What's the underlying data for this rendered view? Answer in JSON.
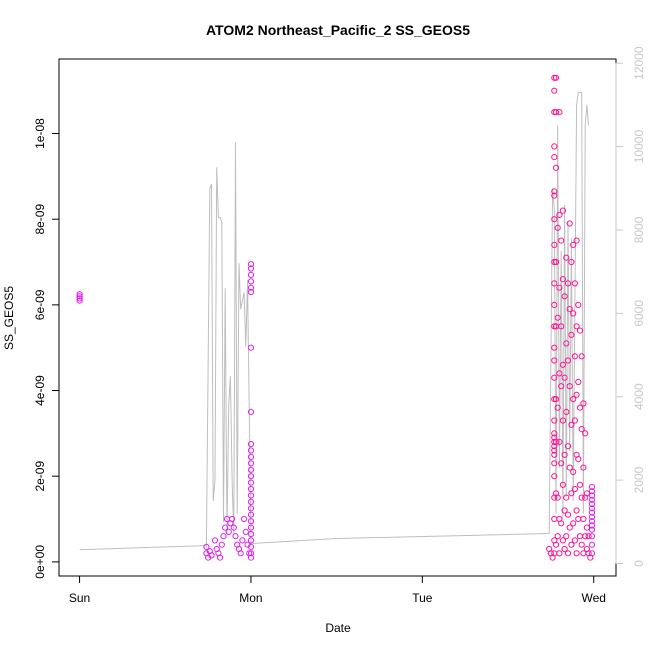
{
  "chart_data": {
    "type": "scatter",
    "title": "ATOM2 Northeast_Pacific_2 SS_GEOS5",
    "xlabel": "Date",
    "ylabel": "SS_GEOS5",
    "x_ticks": [
      "Sun",
      "Mon",
      "Tue",
      "Wed"
    ],
    "x_tick_values": [
      0,
      1,
      2,
      3
    ],
    "xlim": [
      -0.12,
      3.13
    ],
    "ylim": [
      -3.3e-10,
      1.174e-08
    ],
    "y_ticks": [
      0,
      2e-09,
      4e-09,
      6e-09,
      8e-09,
      1e-08
    ],
    "y_tick_labels": [
      "0e+00",
      "2e-09",
      "4e-09",
      "6e-09",
      "8e-09",
      "1e-08"
    ],
    "y2lim": [
      -300,
      12100
    ],
    "y2_ticks": [
      0,
      2000,
      4000,
      6000,
      8000,
      10000,
      12000
    ],
    "y2_tick_labels": [
      "0",
      "2000",
      "4000",
      "6000",
      "8000",
      "10000",
      "12000"
    ],
    "colors": {
      "magenta": "#dd22ee",
      "pink": "#ff1493",
      "line": "#bebebe",
      "right_axis": "#c8c8c8"
    },
    "series": [
      {
        "color": "magenta",
        "points": [
          [
            0.0,
            6.25e-09
          ],
          [
            0.0,
            6.2e-09
          ],
          [
            0.0,
            6.15e-09
          ],
          [
            0.0,
            6.1e-09
          ],
          [
            0.74,
            3.5e-10
          ],
          [
            0.74,
            2e-10
          ],
          [
            0.75,
            1e-10
          ],
          [
            0.76,
            2.5e-10
          ],
          [
            0.77,
            1.5e-10
          ],
          [
            0.79,
            5e-10
          ],
          [
            0.8,
            3e-10
          ],
          [
            0.81,
            2e-10
          ],
          [
            0.82,
            1e-10
          ],
          [
            0.83,
            4e-10
          ],
          [
            0.84,
            6e-10
          ],
          [
            0.85,
            8e-10
          ],
          [
            0.86,
            1e-09
          ],
          [
            0.87,
            7e-10
          ],
          [
            0.88,
            9e-10
          ],
          [
            0.89,
            1e-09
          ],
          [
            0.9,
            8e-10
          ],
          [
            0.91,
            6e-10
          ],
          [
            0.92,
            4e-10
          ],
          [
            0.93,
            3e-10
          ],
          [
            0.94,
            2e-10
          ],
          [
            0.95,
            5e-10
          ],
          [
            0.96,
            1e-09
          ],
          [
            0.97,
            7e-10
          ],
          [
            0.98,
            4e-10
          ],
          [
            0.99,
            2e-10
          ],
          [
            1.0,
            6.95e-09
          ],
          [
            1.0,
            6.85e-09
          ],
          [
            1.0,
            6.7e-09
          ],
          [
            1.0,
            6.55e-09
          ],
          [
            1.0,
            6.4e-09
          ],
          [
            1.0,
            6.3e-09
          ],
          [
            1.0,
            5e-09
          ],
          [
            1.0,
            3.5e-09
          ],
          [
            1.0,
            2.75e-09
          ],
          [
            1.0,
            2.6e-09
          ],
          [
            1.0,
            2.45e-09
          ],
          [
            1.0,
            2.3e-09
          ],
          [
            1.0,
            2.15e-09
          ],
          [
            1.0,
            2e-09
          ],
          [
            1.0,
            1.85e-09
          ],
          [
            1.0,
            1.7e-09
          ],
          [
            1.0,
            1.55e-09
          ],
          [
            1.0,
            1.4e-09
          ],
          [
            1.0,
            1.25e-09
          ],
          [
            1.0,
            1.1e-09
          ],
          [
            1.0,
            9.5e-10
          ],
          [
            1.0,
            8e-10
          ],
          [
            1.0,
            6.5e-10
          ],
          [
            1.0,
            5e-10
          ],
          [
            1.0,
            3.5e-10
          ],
          [
            1.0,
            2e-10
          ],
          [
            1.0,
            1e-10
          ],
          [
            2.99,
            1.75e-09
          ],
          [
            2.99,
            1.65e-09
          ],
          [
            2.99,
            1.55e-09
          ],
          [
            2.99,
            1.45e-09
          ],
          [
            2.99,
            1.35e-09
          ],
          [
            2.99,
            1.25e-09
          ],
          [
            2.99,
            1.15e-09
          ],
          [
            2.99,
            1.05e-09
          ],
          [
            2.99,
            9.5e-10
          ],
          [
            2.99,
            8.5e-10
          ],
          [
            2.99,
            7.5e-10
          ],
          [
            2.99,
            6e-10
          ],
          [
            2.99,
            4e-10
          ],
          [
            2.99,
            2e-10
          ]
        ]
      },
      {
        "color": "pink",
        "points": [
          [
            2.74,
            3e-10
          ],
          [
            2.75,
            2e-10
          ],
          [
            2.76,
            1e-10
          ],
          [
            2.77,
            1.13e-08
          ],
          [
            2.77,
            1.1e-08
          ],
          [
            2.77,
            1.05e-08
          ],
          [
            2.77,
            9.7e-09
          ],
          [
            2.77,
            9.45e-09
          ],
          [
            2.77,
            8.65e-09
          ],
          [
            2.77,
            8.55e-09
          ],
          [
            2.77,
            8e-09
          ],
          [
            2.77,
            7.4e-09
          ],
          [
            2.77,
            7e-09
          ],
          [
            2.77,
            6.5e-09
          ],
          [
            2.77,
            6e-09
          ],
          [
            2.77,
            5.5e-09
          ],
          [
            2.77,
            5e-09
          ],
          [
            2.77,
            4.7e-09
          ],
          [
            2.77,
            4.3e-09
          ],
          [
            2.77,
            3.8e-09
          ],
          [
            2.77,
            3.3e-09
          ],
          [
            2.77,
            3e-09
          ],
          [
            2.77,
            2.9e-09
          ],
          [
            2.77,
            2.8e-09
          ],
          [
            2.77,
            2.7e-09
          ],
          [
            2.77,
            2.6e-09
          ],
          [
            2.77,
            2.5e-09
          ],
          [
            2.77,
            2.3e-09
          ],
          [
            2.77,
            2e-09
          ],
          [
            2.77,
            1.5e-09
          ],
          [
            2.77,
            1e-09
          ],
          [
            2.77,
            5e-10
          ],
          [
            2.77,
            2e-10
          ],
          [
            2.78,
            1.13e-08
          ],
          [
            2.78,
            1.05e-08
          ],
          [
            2.78,
            9.2e-09
          ],
          [
            2.78,
            7e-09
          ],
          [
            2.78,
            5.5e-09
          ],
          [
            2.78,
            3.8e-09
          ],
          [
            2.78,
            2.8e-09
          ],
          [
            2.78,
            1.6e-09
          ],
          [
            2.78,
            4e-10
          ],
          [
            2.79,
            7.8e-09
          ],
          [
            2.79,
            5.7e-09
          ],
          [
            2.79,
            3.6e-09
          ],
          [
            2.79,
            1.5e-09
          ],
          [
            2.79,
            6e-10
          ],
          [
            2.8,
            1.05e-08
          ],
          [
            2.8,
            8.1e-09
          ],
          [
            2.8,
            6.4e-09
          ],
          [
            2.8,
            4.4e-09
          ],
          [
            2.8,
            2.8e-09
          ],
          [
            2.8,
            1e-09
          ],
          [
            2.8,
            2e-10
          ],
          [
            2.81,
            7.5e-09
          ],
          [
            2.81,
            5.5e-09
          ],
          [
            2.81,
            4.1e-09
          ],
          [
            2.81,
            2.3e-09
          ],
          [
            2.81,
            9e-10
          ],
          [
            2.82,
            8.2e-09
          ],
          [
            2.82,
            6.6e-09
          ],
          [
            2.82,
            4.6e-09
          ],
          [
            2.82,
            3.3e-09
          ],
          [
            2.82,
            1.8e-09
          ],
          [
            2.82,
            5e-10
          ],
          [
            2.83,
            6.2e-09
          ],
          [
            2.83,
            4.3e-09
          ],
          [
            2.83,
            2.5e-09
          ],
          [
            2.83,
            1.2e-09
          ],
          [
            2.83,
            3e-10
          ],
          [
            2.84,
            7.1e-09
          ],
          [
            2.84,
            5.1e-09
          ],
          [
            2.84,
            3.5e-09
          ],
          [
            2.84,
            1.5e-09
          ],
          [
            2.84,
            6e-10
          ],
          [
            2.85,
            6.5e-09
          ],
          [
            2.85,
            4.7e-09
          ],
          [
            2.85,
            2.7e-09
          ],
          [
            2.85,
            1.1e-09
          ],
          [
            2.85,
            2e-10
          ],
          [
            2.86,
            7.9e-09
          ],
          [
            2.86,
            5.9e-09
          ],
          [
            2.86,
            4.1e-09
          ],
          [
            2.86,
            2.2e-09
          ],
          [
            2.86,
            8e-10
          ],
          [
            2.87,
            7e-09
          ],
          [
            2.87,
            5.3e-09
          ],
          [
            2.87,
            3.2e-09
          ],
          [
            2.87,
            1.6e-09
          ],
          [
            2.87,
            4e-10
          ],
          [
            2.88,
            7.4e-09
          ],
          [
            2.88,
            5.8e-09
          ],
          [
            2.88,
            3.8e-09
          ],
          [
            2.88,
            2.1e-09
          ],
          [
            2.88,
            9e-10
          ],
          [
            2.89,
            6.5e-09
          ],
          [
            2.89,
            4.8e-09
          ],
          [
            2.89,
            3.3e-09
          ],
          [
            2.89,
            1.7e-09
          ],
          [
            2.89,
            5e-10
          ],
          [
            2.9,
            7.5e-09
          ],
          [
            2.9,
            5.5e-09
          ],
          [
            2.9,
            3.9e-09
          ],
          [
            2.9,
            2.5e-09
          ],
          [
            2.9,
            1.2e-09
          ],
          [
            2.9,
            2e-10
          ],
          [
            2.91,
            6e-09
          ],
          [
            2.91,
            4.2e-09
          ],
          [
            2.91,
            2.4e-09
          ],
          [
            2.91,
            1e-09
          ],
          [
            2.92,
            5.4e-09
          ],
          [
            2.92,
            3.6e-09
          ],
          [
            2.92,
            1.8e-09
          ],
          [
            2.92,
            6e-10
          ],
          [
            2.93,
            4.8e-09
          ],
          [
            2.93,
            3.1e-09
          ],
          [
            2.93,
            1.5e-09
          ],
          [
            2.93,
            4e-10
          ],
          [
            2.94,
            3.7e-09
          ],
          [
            2.94,
            2.2e-09
          ],
          [
            2.94,
            1e-09
          ],
          [
            2.94,
            2e-10
          ],
          [
            2.95,
            3e-09
          ],
          [
            2.95,
            1.5e-09
          ],
          [
            2.95,
            6e-10
          ],
          [
            2.96,
            1.6e-09
          ],
          [
            2.96,
            8e-10
          ],
          [
            2.96,
            3e-10
          ],
          [
            2.97,
            6e-10
          ],
          [
            2.97,
            2e-10
          ],
          [
            2.98,
            1e-10
          ]
        ]
      },
      {
        "color": "line",
        "axis": "right",
        "points": [
          [
            0.0,
            330
          ],
          [
            0.74,
            430
          ],
          [
            0.76,
            9000
          ],
          [
            0.77,
            9100
          ],
          [
            0.78,
            1500
          ],
          [
            0.79,
            2000
          ],
          [
            0.8,
            9500
          ],
          [
            0.81,
            8300
          ],
          [
            0.82,
            8300
          ],
          [
            0.83,
            8200
          ],
          [
            0.84,
            1000
          ],
          [
            0.85,
            6600
          ],
          [
            0.86,
            700
          ],
          [
            0.87,
            3800
          ],
          [
            0.88,
            4500
          ],
          [
            0.89,
            2000
          ],
          [
            0.9,
            700
          ],
          [
            0.91,
            10100
          ],
          [
            0.92,
            1200
          ],
          [
            0.93,
            7200
          ],
          [
            0.94,
            6100
          ],
          [
            0.96,
            6500
          ],
          [
            0.97,
            5200
          ],
          [
            0.98,
            6800
          ],
          [
            1.0,
            480
          ],
          [
            1.5,
            600
          ],
          [
            2.74,
            720
          ],
          [
            2.76,
            9000
          ],
          [
            2.77,
            8500
          ],
          [
            2.78,
            1200
          ],
          [
            2.79,
            10500
          ],
          [
            2.8,
            2300
          ],
          [
            2.81,
            7500
          ],
          [
            2.82,
            1100
          ],
          [
            2.83,
            8600
          ],
          [
            2.84,
            1600
          ],
          [
            2.85,
            8200
          ],
          [
            2.86,
            2700
          ],
          [
            2.87,
            7800
          ],
          [
            2.88,
            1500
          ],
          [
            2.9,
            11000
          ],
          [
            2.91,
            11300
          ],
          [
            2.93,
            11300
          ],
          [
            2.94,
            1200
          ],
          [
            2.95,
            10500
          ],
          [
            2.96,
            11000
          ],
          [
            2.97,
            10500
          ]
        ]
      }
    ]
  }
}
